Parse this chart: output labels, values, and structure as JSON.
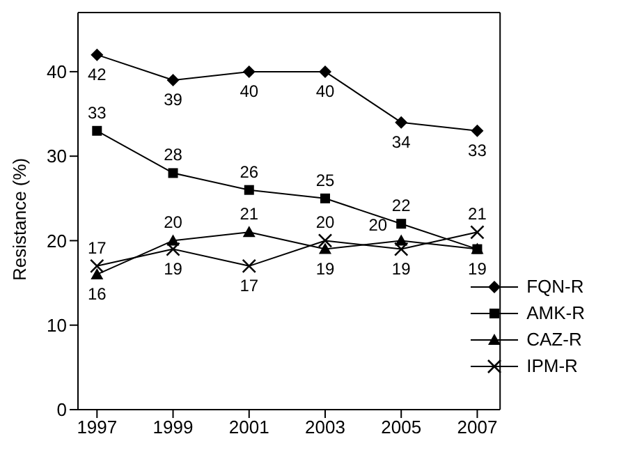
{
  "chart_data": {
    "type": "line",
    "ylabel": "Resistance (%)",
    "x": [
      1997,
      1999,
      2001,
      2003,
      2005,
      2007
    ],
    "xlim": [
      1996.5,
      2007.6
    ],
    "xticks": [
      1997,
      1999,
      2001,
      2003,
      2005,
      2007
    ],
    "ylim": [
      0,
      47
    ],
    "yticks": [
      0,
      10,
      20,
      30,
      40
    ],
    "grid": false,
    "legend": "bottom right",
    "series": [
      {
        "name": "FQN-R",
        "color": "#000000",
        "marker": "diamond",
        "values": [
          42,
          39,
          40,
          40,
          34,
          33
        ],
        "value_labels": [
          "42",
          "39",
          "40",
          "40",
          "34",
          "33"
        ]
      },
      {
        "name": "AMK-R",
        "color": "#000000",
        "marker": "square",
        "values": [
          33,
          28,
          26,
          25,
          22,
          19
        ],
        "value_labels": [
          "33",
          "28",
          "26",
          "25",
          "22",
          null
        ]
      },
      {
        "name": "CAZ-R",
        "color": "#000000",
        "marker": "triangle",
        "values": [
          16,
          20,
          21,
          19,
          20,
          19
        ],
        "value_labels": [
          "16",
          "20",
          "21",
          "19",
          "20",
          "19"
        ]
      },
      {
        "name": "IPM-R",
        "color": "#000000",
        "marker": "cross",
        "values": [
          17,
          19,
          17,
          20,
          19,
          21
        ],
        "value_labels": [
          "17",
          "19",
          "17",
          "20",
          "19",
          "21"
        ]
      }
    ]
  }
}
